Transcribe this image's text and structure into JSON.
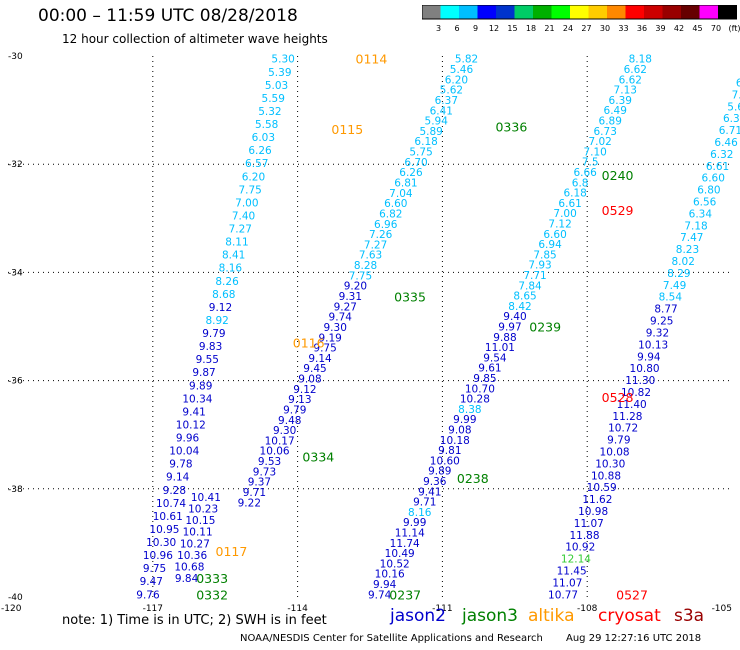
{
  "title": "00:00 – 11:59 UTC 08/28/2018",
  "subtitle": "12 hour collection of altimeter wave heights",
  "colorbar": {
    "labels": [
      "3",
      "6",
      "9",
      "12",
      "15",
      "18",
      "21",
      "24",
      "27",
      "30",
      "33",
      "36",
      "39",
      "42",
      "45",
      "70",
      "(ft)"
    ],
    "colors": [
      "#808080",
      "#00ffff",
      "#00bfff",
      "#0000ff",
      "#0033cc",
      "#00cc66",
      "#00b000",
      "#00ff00",
      "#ffff00",
      "#ffcc00",
      "#ff8800",
      "#ff0000",
      "#cc0000",
      "#990000",
      "#660000",
      "#ff00ff",
      "#000000"
    ]
  },
  "axes": {
    "lat_labels": [
      "-30",
      "-32",
      "-34",
      "-36",
      "-38",
      "-40"
    ],
    "lon_labels": [
      "-120",
      "-117",
      "-114",
      "-111",
      "-108",
      "-105"
    ],
    "lat_range": [
      -40,
      -30
    ],
    "lon_range": [
      -120,
      -105
    ]
  },
  "colors": {
    "jason2": "#0000cc",
    "jason3": "#008000",
    "altika": "#ff9900",
    "cryosat": "#ff0000",
    "s3a": "#990000",
    "light_swh": "#00bfff",
    "lime_swh": "#33cc33"
  },
  "tracks": [
    {
      "values": [
        "5.30",
        "5.39",
        "5.03",
        "5.59",
        "5.32",
        "5.58",
        "6.03",
        "6.26",
        "6.57",
        "6.20",
        "7.75",
        "7.00",
        "7.40",
        "7.27",
        "8.11",
        "8.41",
        "8.16",
        "8.26",
        "8.68",
        "9.12",
        "8.92",
        "9.79",
        "9.83",
        "9.55",
        "9.87",
        "9.89",
        "10.34",
        "9.41",
        "10.12",
        "9.96",
        "10.04",
        "9.78",
        "9.14",
        "9.28",
        "10.74",
        "10.61",
        "10.95",
        "10.30",
        "10.96",
        "9.75",
        "9.47",
        "9.76"
      ],
      "colors": [
        "L",
        "L",
        "L",
        "L",
        "L",
        "L",
        "L",
        "L",
        "L",
        "L",
        "L",
        "L",
        "L",
        "L",
        "L",
        "L",
        "L",
        "L",
        "L",
        "B",
        "L",
        "B",
        "B",
        "B",
        "B",
        "B",
        "B",
        "B",
        "B",
        "B",
        "B",
        "B",
        "B",
        "B",
        "B",
        "B",
        "B",
        "B",
        "B",
        "B",
        "B",
        "B"
      ],
      "lat_start": -30.05,
      "lat_end": -39.95,
      "lon_start": -114.3,
      "lon_end": -117.1
    },
    {
      "values": [
        "10.41",
        "10.23",
        "10.15",
        "10.11",
        "10.27",
        "10.36",
        "10.68",
        "9.84"
      ],
      "colors": [
        "B",
        "B",
        "B",
        "B",
        "B",
        "B",
        "B",
        "B"
      ],
      "lat_start": -38.15,
      "lat_end": -39.65,
      "lon_start": -115.9,
      "lon_end": -116.3
    },
    {
      "values": [
        "5.82",
        "5.46",
        "6.20",
        "5.62",
        "6.37",
        "6.41",
        "5.94",
        "5.89",
        "6.18",
        "5.75",
        "6.70",
        "6.26",
        "6.81",
        "7.04",
        "6.60",
        "6.82",
        "6.96",
        "7.26",
        "7.27",
        "7.63",
        "8.28",
        "7.75",
        "9.20",
        "9.31",
        "9.27",
        "9.74",
        "9.30",
        "9.19",
        "9.75",
        "9.14",
        "9.45",
        "9.08",
        "9.12",
        "9.13",
        "9.79",
        "9.48",
        "9.30",
        "10.17",
        "10.06",
        "9.53",
        "9.73",
        "9.37",
        "9.71",
        "9.22"
      ],
      "colors": [
        "L",
        "L",
        "L",
        "L",
        "L",
        "L",
        "L",
        "L",
        "L",
        "L",
        "L",
        "L",
        "L",
        "L",
        "L",
        "L",
        "L",
        "L",
        "L",
        "L",
        "L",
        "L",
        "B",
        "B",
        "B",
        "B",
        "B",
        "B",
        "B",
        "B",
        "B",
        "B",
        "B",
        "B",
        "B",
        "B",
        "B",
        "B",
        "B",
        "B",
        "B",
        "B",
        "B",
        "B"
      ],
      "lat_start": -30.05,
      "lat_end": -38.25,
      "lon_start": -110.5,
      "lon_end": -115.0
    },
    {
      "values": [
        "8.18",
        "6.62",
        "6.62",
        "7.13",
        "6.39",
        "6.49",
        "6.89",
        "6.73",
        "7.02",
        "7.10",
        "7.5",
        "6.66",
        "6.8",
        "6.18",
        "6.61",
        "7.00",
        "7.12",
        "6.60",
        "6.94",
        "7.85",
        "7.93",
        "7.71",
        "7.84",
        "8.65",
        "8.42",
        "9.40",
        "9.97",
        "9.88",
        "11.01",
        "9.54",
        "9.61",
        "9.85",
        "10.70",
        "10.28",
        "8.38",
        "9.99",
        "9.08",
        "10.18",
        "9.81",
        "10.60",
        "9.89",
        "9.36",
        "9.41",
        "9.71",
        "8.16",
        "9.99",
        "11.14",
        "11.74",
        "10.49",
        "10.52",
        "10.16",
        "9.94",
        "9.74"
      ],
      "colors": [
        "L",
        "L",
        "L",
        "L",
        "L",
        "L",
        "L",
        "L",
        "L",
        "L",
        "L",
        "L",
        "L",
        "L",
        "L",
        "L",
        "L",
        "L",
        "L",
        "L",
        "L",
        "L",
        "L",
        "L",
        "L",
        "B",
        "B",
        "B",
        "B",
        "B",
        "B",
        "B",
        "B",
        "B",
        "L",
        "B",
        "B",
        "B",
        "B",
        "B",
        "B",
        "B",
        "B",
        "B",
        "L",
        "B",
        "B",
        "B",
        "B",
        "B",
        "B",
        "B",
        "B"
      ],
      "lat_start": -30.05,
      "lat_end": -39.95,
      "lon_start": -106.9,
      "lon_end": -112.3
    },
    {
      "values": [
        "5.65",
        "6.57",
        "6.37",
        "7.13",
        "5.63",
        "6.38",
        "6.71",
        "6.46",
        "6.32",
        "6.61",
        "6.60",
        "6.80",
        "6.56",
        "6.34",
        "7.18",
        "7.47",
        "8.23",
        "8.02",
        "8.29",
        "7.49",
        "8.54",
        "8.77",
        "9.25",
        "9.32",
        "10.13",
        "9.94",
        "10.80",
        "11.30",
        "10.82",
        "11.40",
        "11.28",
        "10.72",
        "9.79",
        "10.08",
        "10.30",
        "10.88",
        "10.59",
        "11.62",
        "10.98",
        "11.07",
        "11.88",
        "10.92",
        "12.14",
        "11.45",
        "11.07",
        "10.77"
      ],
      "colors": [
        "L",
        "L",
        "L",
        "L",
        "L",
        "L",
        "L",
        "L",
        "L",
        "L",
        "L",
        "L",
        "L",
        "L",
        "L",
        "L",
        "L",
        "L",
        "L",
        "L",
        "L",
        "B",
        "B",
        "B",
        "B",
        "B",
        "B",
        "B",
        "B",
        "B",
        "B",
        "B",
        "B",
        "B",
        "B",
        "B",
        "B",
        "B",
        "B",
        "B",
        "B",
        "B",
        "G",
        "B",
        "B",
        "B"
      ],
      "lat_start": -30.05,
      "lat_end": -39.95,
      "lon_start": -104.5,
      "lon_end": -108.5
    }
  ],
  "time_labels": [
    {
      "text": "0114",
      "sat": "altika",
      "lat": -30.05,
      "lon": -112.8
    },
    {
      "text": "0115",
      "sat": "altika",
      "lat": -31.35,
      "lon": -113.3
    },
    {
      "text": "0116",
      "sat": "altika",
      "lat": -35.3,
      "lon": -114.1
    },
    {
      "text": "0117",
      "sat": "altika",
      "lat": -39.15,
      "lon": -115.7
    },
    {
      "text": "0336",
      "sat": "jason3",
      "lat": -31.3,
      "lon": -109.9
    },
    {
      "text": "0335",
      "sat": "jason3",
      "lat": -34.45,
      "lon": -112.0
    },
    {
      "text": "0334",
      "sat": "jason3",
      "lat": -37.4,
      "lon": -113.9
    },
    {
      "text": "0333",
      "sat": "jason3",
      "lat": -39.65,
      "lon": -116.1
    },
    {
      "text": "0332",
      "sat": "jason3",
      "lat": -39.95,
      "lon": -116.1
    },
    {
      "text": "0240",
      "sat": "jason3",
      "lat": -32.2,
      "lon": -107.7
    },
    {
      "text": "0239",
      "sat": "jason3",
      "lat": -35.0,
      "lon": -109.2
    },
    {
      "text": "0238",
      "sat": "jason3",
      "lat": -37.8,
      "lon": -110.7
    },
    {
      "text": "0237",
      "sat": "jason3",
      "lat": -39.95,
      "lon": -112.1
    },
    {
      "text": "0529",
      "sat": "cryosat",
      "lat": -32.85,
      "lon": -107.7
    },
    {
      "text": "0528",
      "sat": "cryosat",
      "lat": -36.3,
      "lon": -107.7
    },
    {
      "text": "0527",
      "sat": "cryosat",
      "lat": -39.95,
      "lon": -107.4
    }
  ],
  "note": "note:  1) Time is in UTC;  2) SWH is in feet",
  "legend": [
    {
      "label": "jason2",
      "key": "jason2"
    },
    {
      "label": "jason3",
      "key": "jason3"
    },
    {
      "label": "altika",
      "key": "altika"
    },
    {
      "label": "cryosat",
      "key": "cryosat"
    },
    {
      "label": "s3a",
      "key": "s3a"
    }
  ],
  "footer_left": "NOAA/NESDIS Center for Satellite Applications and Research",
  "footer_right": "Aug 29 12:27:16 UTC 2018"
}
